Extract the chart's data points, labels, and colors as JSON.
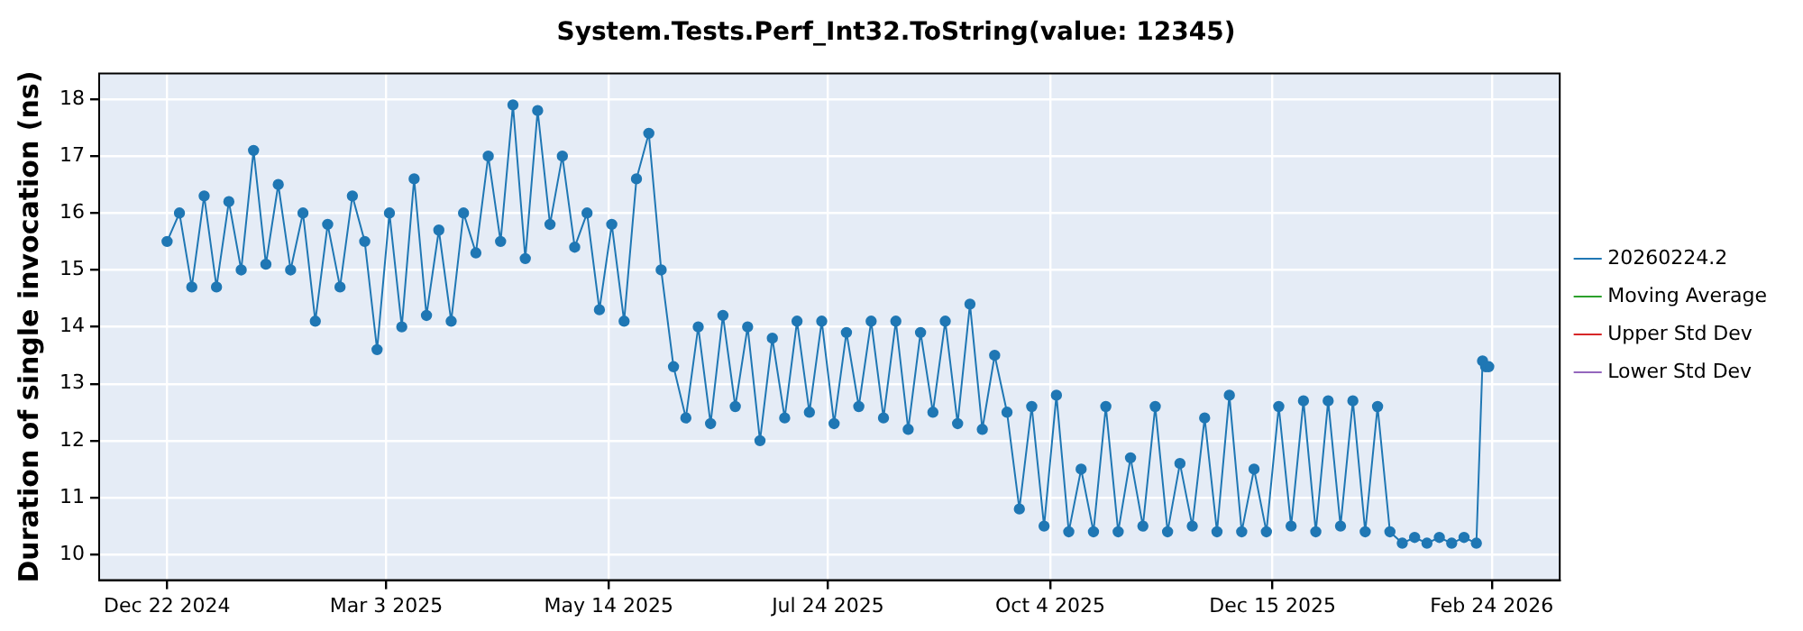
{
  "chart_data": {
    "type": "line",
    "title": "System.Tests.Perf_Int32.ToString(value: 12345)",
    "ylabel": "Duration of single invocation (ns)",
    "xlim": [
      "2024-11-30",
      "2026-03-18"
    ],
    "xticks": [
      {
        "value": "2024-12-22",
        "label": "Dec 22 2024"
      },
      {
        "value": "2025-03-03",
        "label": "Mar 3 2025"
      },
      {
        "value": "2025-05-14",
        "label": "May 14 2025"
      },
      {
        "value": "2025-07-24",
        "label": "Jul 24 2025"
      },
      {
        "value": "2025-10-04",
        "label": "Oct 4 2025"
      },
      {
        "value": "2025-12-15",
        "label": "Dec 15 2025"
      },
      {
        "value": "2026-02-24",
        "label": "Feb 24 2026"
      }
    ],
    "ylim": [
      9.55,
      18.45
    ],
    "yticks": [
      10,
      11,
      12,
      13,
      14,
      15,
      16,
      17,
      18
    ],
    "grid": true,
    "legend": "right",
    "marker": "circle",
    "line_style": "solid",
    "series": [
      {
        "name": "20260224.2",
        "color": "#1f77b4",
        "x": [
          "2024-12-22",
          "2024-12-26",
          "2024-12-30",
          "2025-01-03",
          "2025-01-07",
          "2025-01-11",
          "2025-01-15",
          "2025-01-19",
          "2025-01-23",
          "2025-01-27",
          "2025-01-31",
          "2025-02-04",
          "2025-02-08",
          "2025-02-12",
          "2025-02-16",
          "2025-02-20",
          "2025-02-24",
          "2025-02-28",
          "2025-03-04",
          "2025-03-08",
          "2025-03-12",
          "2025-03-16",
          "2025-03-20",
          "2025-03-24",
          "2025-03-28",
          "2025-04-01",
          "2025-04-05",
          "2025-04-09",
          "2025-04-13",
          "2025-04-17",
          "2025-04-21",
          "2025-04-25",
          "2025-04-29",
          "2025-05-03",
          "2025-05-07",
          "2025-05-11",
          "2025-05-15",
          "2025-05-19",
          "2025-05-23",
          "2025-05-27",
          "2025-05-31",
          "2025-06-04",
          "2025-06-08",
          "2025-06-12",
          "2025-06-16",
          "2025-06-20",
          "2025-06-24",
          "2025-06-28",
          "2025-07-02",
          "2025-07-06",
          "2025-07-10",
          "2025-07-14",
          "2025-07-18",
          "2025-07-22",
          "2025-07-26",
          "2025-07-30",
          "2025-08-03",
          "2025-08-07",
          "2025-08-11",
          "2025-08-15",
          "2025-08-19",
          "2025-08-23",
          "2025-08-27",
          "2025-08-31",
          "2025-09-04",
          "2025-09-08",
          "2025-09-12",
          "2025-09-16",
          "2025-09-20",
          "2025-09-24",
          "2025-09-28",
          "2025-10-02",
          "2025-10-06",
          "2025-10-10",
          "2025-10-14",
          "2025-10-18",
          "2025-10-22",
          "2025-10-26",
          "2025-10-30",
          "2025-11-03",
          "2025-11-07",
          "2025-11-11",
          "2025-11-15",
          "2025-11-19",
          "2025-11-23",
          "2025-11-27",
          "2025-12-01",
          "2025-12-05",
          "2025-12-09",
          "2025-12-13",
          "2025-12-17",
          "2025-12-21",
          "2025-12-25",
          "2025-12-29",
          "2026-01-02",
          "2026-01-06",
          "2026-01-10",
          "2026-01-14",
          "2026-01-18",
          "2026-01-22",
          "2026-01-26",
          "2026-01-30",
          "2026-02-03",
          "2026-02-07",
          "2026-02-11",
          "2026-02-15",
          "2026-02-19",
          "2026-02-21",
          "2026-02-22",
          "2026-02-23"
        ],
        "values": [
          15.5,
          16.0,
          14.7,
          16.3,
          14.7,
          16.2,
          15.0,
          17.1,
          15.1,
          16.5,
          15.0,
          16.0,
          14.1,
          15.8,
          14.7,
          16.3,
          15.5,
          13.6,
          16.0,
          14.0,
          16.6,
          14.2,
          15.7,
          14.1,
          16.0,
          15.3,
          17.0,
          15.5,
          17.9,
          15.2,
          17.8,
          15.8,
          17.0,
          15.4,
          16.0,
          14.3,
          15.8,
          14.1,
          16.6,
          17.4,
          15.0,
          13.3,
          12.4,
          14.0,
          12.3,
          14.2,
          12.6,
          14.0,
          12.0,
          13.8,
          12.4,
          14.1,
          12.5,
          14.1,
          12.3,
          13.9,
          12.6,
          14.1,
          12.4,
          14.1,
          12.2,
          13.9,
          12.5,
          14.1,
          12.3,
          14.4,
          12.2,
          13.5,
          12.5,
          10.8,
          12.6,
          10.5,
          12.8,
          10.4,
          11.5,
          10.4,
          12.6,
          10.4,
          11.7,
          10.5,
          12.6,
          10.4,
          11.6,
          10.5,
          12.4,
          10.4,
          12.8,
          10.4,
          11.5,
          10.4,
          12.6,
          10.5,
          12.7,
          10.4,
          12.7,
          10.5,
          12.7,
          10.4,
          12.6,
          10.4,
          10.2,
          10.3,
          10.2,
          10.3,
          10.2,
          10.3,
          10.2,
          13.4,
          13.3,
          13.3
        ]
      },
      {
        "name": "Moving Average",
        "color": "#2ca02c"
      },
      {
        "name": "Upper Std Dev",
        "color": "#d62728"
      },
      {
        "name": "Lower Std Dev",
        "color": "#9467bd"
      }
    ]
  }
}
